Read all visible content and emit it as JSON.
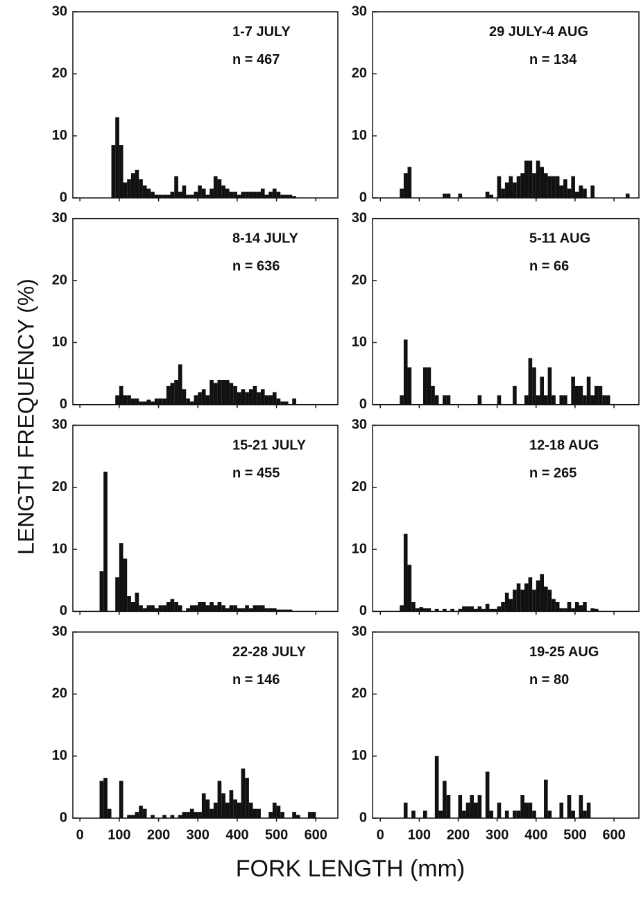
{
  "figure": {
    "y_label": "LENGTH FREQUENCY (%)",
    "x_label": "FORK LENGTH (mm)"
  },
  "chart_data": [
    {
      "type": "histogram",
      "title": "1-7 JULY",
      "subtitle": "n = 467",
      "color": "#111111",
      "bins": [
        50,
        60,
        70,
        80,
        90,
        100,
        110,
        120,
        130,
        140,
        150,
        160,
        170,
        180,
        190,
        200,
        210,
        220,
        230,
        240,
        250,
        260,
        270,
        280,
        290,
        300,
        310,
        320,
        330,
        340,
        350,
        360,
        370,
        380,
        390,
        400,
        410,
        420,
        430,
        440,
        450,
        460,
        470,
        480,
        490,
        500,
        510,
        520,
        530,
        540,
        550,
        560,
        570,
        580,
        590,
        600,
        610,
        620,
        630,
        640,
        650
      ],
      "values": [
        0,
        0,
        0,
        8.5,
        13,
        8.5,
        2.5,
        3,
        4,
        4.5,
        3,
        2,
        1.5,
        1,
        0.5,
        0.5,
        0.5,
        0.5,
        1,
        3.5,
        1,
        2,
        0.5,
        0.5,
        1,
        2,
        1.5,
        0.5,
        1.5,
        3.5,
        3,
        2,
        1.5,
        1,
        1,
        0.5,
        1,
        1,
        1,
        1,
        1,
        1.5,
        0.5,
        1,
        1.5,
        1,
        0.5,
        0.5,
        0.5,
        0.3,
        0,
        0,
        0,
        0,
        0,
        0,
        0,
        0,
        0,
        0
      ],
      "xlim": [
        -18,
        656
      ],
      "xticks": [
        0,
        100,
        200,
        300,
        400,
        500,
        600
      ],
      "ylim": [
        0,
        30
      ],
      "yticks": [
        0,
        10,
        20,
        30
      ]
    },
    {
      "type": "histogram",
      "title": "29 JULY-4 AUG",
      "subtitle": "n = 134",
      "color": "#111111",
      "bins": [
        50,
        60,
        70,
        80,
        90,
        100,
        110,
        120,
        130,
        140,
        150,
        160,
        170,
        180,
        190,
        200,
        210,
        220,
        230,
        240,
        250,
        260,
        270,
        280,
        290,
        300,
        310,
        320,
        330,
        340,
        350,
        360,
        370,
        380,
        390,
        400,
        410,
        420,
        430,
        440,
        450,
        460,
        470,
        480,
        490,
        500,
        510,
        520,
        530,
        540,
        550,
        560,
        570,
        580,
        590,
        600,
        610,
        620,
        630,
        640,
        650
      ],
      "values": [
        1.5,
        4,
        5,
        0,
        0,
        0,
        0,
        0,
        0,
        0,
        0,
        0.7,
        0.7,
        0,
        0,
        0.7,
        0,
        0,
        0,
        0,
        0,
        0,
        1,
        0.5,
        0,
        3.5,
        1.5,
        2.5,
        3.5,
        2.5,
        3.5,
        4,
        6,
        6,
        4,
        6,
        5,
        4,
        3.5,
        3.5,
        3.5,
        2,
        3,
        1.5,
        3.5,
        1,
        2,
        1.5,
        0,
        2,
        0,
        0,
        0,
        0,
        0,
        0,
        0,
        0,
        0.7,
        0
      ],
      "xlim": [
        -20,
        664
      ],
      "xticks": [
        0,
        100,
        200,
        300,
        400,
        500,
        600
      ],
      "ylim": [
        0,
        30
      ],
      "yticks": [
        0,
        10,
        20,
        30
      ]
    },
    {
      "type": "histogram",
      "title": "8-14 JULY",
      "subtitle": "n = 636",
      "color": "#111111",
      "bins": [
        50,
        60,
        70,
        80,
        90,
        100,
        110,
        120,
        130,
        140,
        150,
        160,
        170,
        180,
        190,
        200,
        210,
        220,
        230,
        240,
        250,
        260,
        270,
        280,
        290,
        300,
        310,
        320,
        330,
        340,
        350,
        360,
        370,
        380,
        390,
        400,
        410,
        420,
        430,
        440,
        450,
        460,
        470,
        480,
        490,
        500,
        510,
        520,
        530,
        540,
        550,
        560,
        570,
        580,
        590,
        600,
        610,
        620,
        630,
        640,
        650
      ],
      "values": [
        0,
        0,
        0,
        0,
        1.5,
        3,
        1.5,
        1.5,
        1,
        1,
        0.5,
        0.5,
        0.8,
        0.5,
        1,
        1,
        1,
        3,
        3.5,
        4,
        6.5,
        2.5,
        1,
        0.5,
        1.5,
        2,
        2.5,
        1.5,
        4,
        3.5,
        4,
        4,
        4,
        3.5,
        3,
        2,
        2.5,
        2,
        2.5,
        3,
        2,
        2.5,
        1.5,
        1.5,
        2,
        1,
        0.5,
        0.5,
        0,
        1,
        0,
        0,
        0,
        0,
        0,
        0,
        0,
        0,
        0,
        0
      ],
      "xlim": [
        -18,
        656
      ],
      "xticks": [
        0,
        100,
        200,
        300,
        400,
        500,
        600
      ],
      "ylim": [
        0,
        30
      ],
      "yticks": [
        0,
        10,
        20,
        30
      ]
    },
    {
      "type": "histogram",
      "title": "5-11 AUG",
      "subtitle": "n = 66",
      "color": "#111111",
      "bins": [
        50,
        60,
        70,
        80,
        90,
        100,
        110,
        120,
        130,
        140,
        150,
        160,
        170,
        180,
        190,
        200,
        210,
        220,
        230,
        240,
        250,
        260,
        270,
        280,
        290,
        300,
        310,
        320,
        330,
        340,
        350,
        360,
        370,
        380,
        390,
        400,
        410,
        420,
        430,
        440,
        450,
        460,
        470,
        480,
        490,
        500,
        510,
        520,
        530,
        540,
        550,
        560,
        570,
        580,
        590,
        600,
        610,
        620,
        630,
        640,
        650
      ],
      "values": [
        1.5,
        10.5,
        6,
        0,
        0,
        0,
        6,
        6,
        3,
        1.5,
        0,
        1.5,
        1.5,
        0,
        0,
        0,
        0,
        0,
        0,
        0,
        1.5,
        0,
        0,
        0,
        0,
        1.5,
        0,
        0,
        0,
        3,
        0,
        0,
        1.5,
        7.5,
        6,
        1.5,
        4.5,
        1.5,
        6,
        1.5,
        0,
        1.5,
        1.5,
        0,
        4.5,
        3,
        3,
        1.5,
        4.5,
        1.5,
        3,
        3,
        1.5,
        1.5,
        0,
        0,
        0,
        0,
        0,
        0
      ],
      "xlim": [
        -20,
        664
      ],
      "xticks": [
        0,
        100,
        200,
        300,
        400,
        500,
        600
      ],
      "ylim": [
        0,
        30
      ],
      "yticks": [
        0,
        10,
        20,
        30
      ]
    },
    {
      "type": "histogram",
      "title": "15-21 JULY",
      "subtitle": "n = 455",
      "color": "#111111",
      "bins": [
        50,
        60,
        70,
        80,
        90,
        100,
        110,
        120,
        130,
        140,
        150,
        160,
        170,
        180,
        190,
        200,
        210,
        220,
        230,
        240,
        250,
        260,
        270,
        280,
        290,
        300,
        310,
        320,
        330,
        340,
        350,
        360,
        370,
        380,
        390,
        400,
        410,
        420,
        430,
        440,
        450,
        460,
        470,
        480,
        490,
        500,
        510,
        520,
        530,
        540,
        550,
        560,
        570,
        580,
        590,
        600,
        610,
        620,
        630,
        640,
        650
      ],
      "values": [
        6.5,
        22.5,
        0,
        0,
        5.5,
        11,
        8.5,
        2.5,
        1.5,
        3,
        1,
        0.5,
        1,
        1,
        0.5,
        1,
        1,
        1.5,
        2,
        1.5,
        1,
        0,
        0.5,
        1,
        1,
        1.5,
        1.5,
        1,
        1.5,
        1,
        1.5,
        1,
        0.5,
        1,
        1,
        0.5,
        0.5,
        1,
        0.5,
        1,
        1,
        1,
        0.5,
        0.5,
        0.5,
        0.3,
        0.3,
        0.3,
        0.3,
        0,
        0,
        0,
        0,
        0,
        0,
        0,
        0,
        0,
        0,
        0
      ],
      "xlim": [
        -18,
        656
      ],
      "xticks": [
        0,
        100,
        200,
        300,
        400,
        500,
        600
      ],
      "ylim": [
        0,
        30
      ],
      "yticks": [
        0,
        10,
        20,
        30
      ]
    },
    {
      "type": "histogram",
      "title": "12-18 AUG",
      "subtitle": "n = 265",
      "color": "#111111",
      "bins": [
        50,
        60,
        70,
        80,
        90,
        100,
        110,
        120,
        130,
        140,
        150,
        160,
        170,
        180,
        190,
        200,
        210,
        220,
        230,
        240,
        250,
        260,
        270,
        280,
        290,
        300,
        310,
        320,
        330,
        340,
        350,
        360,
        370,
        380,
        390,
        400,
        410,
        420,
        430,
        440,
        450,
        460,
        470,
        480,
        490,
        500,
        510,
        520,
        530,
        540,
        550,
        560,
        570,
        580,
        590,
        600,
        610,
        620,
        630,
        640,
        650
      ],
      "values": [
        1,
        12.5,
        7.5,
        1.5,
        0.5,
        0.7,
        0.5,
        0.5,
        0,
        0.4,
        0,
        0.4,
        0,
        0.4,
        0,
        0.4,
        0.8,
        0.8,
        0.8,
        0.4,
        0.8,
        0.4,
        1.2,
        0.4,
        0.4,
        0.8,
        1.5,
        3,
        2,
        3.5,
        4.5,
        3.5,
        4.5,
        5.5,
        3.5,
        5,
        6,
        4,
        3.5,
        2,
        1.5,
        0.5,
        0.5,
        1.5,
        0.5,
        1.5,
        1,
        1.5,
        0,
        0.5,
        0.4,
        0,
        0,
        0,
        0,
        0,
        0,
        0,
        0,
        0
      ],
      "xlim": [
        -20,
        664
      ],
      "xticks": [
        0,
        100,
        200,
        300,
        400,
        500,
        600
      ],
      "ylim": [
        0,
        30
      ],
      "yticks": [
        0,
        10,
        20,
        30
      ]
    },
    {
      "type": "histogram",
      "title": "22-28 JULY",
      "subtitle": "n = 146",
      "color": "#111111",
      "bins": [
        50,
        60,
        70,
        80,
        90,
        100,
        110,
        120,
        130,
        140,
        150,
        160,
        170,
        180,
        190,
        200,
        210,
        220,
        230,
        240,
        250,
        260,
        270,
        280,
        290,
        300,
        310,
        320,
        330,
        340,
        350,
        360,
        370,
        380,
        390,
        400,
        410,
        420,
        430,
        440,
        450,
        460,
        470,
        480,
        490,
        500,
        510,
        520,
        530,
        540,
        550,
        560,
        570,
        580,
        590,
        600,
        610,
        620,
        630,
        640,
        650
      ],
      "values": [
        6,
        6.5,
        1.5,
        0,
        0,
        6,
        0,
        0.5,
        0.5,
        1,
        2,
        1.5,
        0,
        0.5,
        0,
        0,
        0.5,
        0,
        0.5,
        0,
        0.5,
        1,
        1,
        1.5,
        1,
        1,
        4,
        3,
        1.5,
        2.5,
        6,
        4,
        2.5,
        4.5,
        3,
        2.5,
        8,
        6.5,
        2.5,
        1.5,
        1.5,
        0,
        0,
        1,
        2.5,
        2,
        1,
        0,
        0,
        1,
        0.5,
        0,
        0,
        1,
        1,
        0,
        0,
        0,
        0,
        0
      ],
      "xlim": [
        -18,
        656
      ],
      "xticks": [
        0,
        100,
        200,
        300,
        400,
        500,
        600
      ],
      "ylim": [
        0,
        30
      ],
      "yticks": [
        0,
        10,
        20,
        30
      ]
    },
    {
      "type": "histogram",
      "title": "19-25 AUG",
      "subtitle": "n = 80",
      "color": "#111111",
      "bins": [
        50,
        60,
        70,
        80,
        90,
        100,
        110,
        120,
        130,
        140,
        150,
        160,
        170,
        180,
        190,
        200,
        210,
        220,
        230,
        240,
        250,
        260,
        270,
        280,
        290,
        300,
        310,
        320,
        330,
        340,
        350,
        360,
        370,
        380,
        390,
        400,
        410,
        420,
        430,
        440,
        450,
        460,
        470,
        480,
        490,
        500,
        510,
        520,
        530,
        540,
        550,
        560,
        570,
        580,
        590,
        600,
        610,
        620,
        630,
        640,
        650
      ],
      "values": [
        0,
        2.5,
        0,
        1.2,
        0,
        0,
        1.2,
        0,
        0,
        10,
        1.2,
        6,
        3.7,
        0,
        0,
        3.7,
        1.2,
        2.5,
        3.7,
        2.5,
        3.7,
        0,
        7.5,
        1.2,
        0,
        2.5,
        0,
        1.2,
        0,
        1.2,
        1.2,
        3.7,
        2.5,
        2.5,
        1.2,
        0,
        0,
        6.2,
        1.2,
        0,
        0,
        2.5,
        0,
        3.7,
        1.2,
        0,
        3.7,
        1.2,
        2.5,
        0,
        0,
        0,
        0,
        0,
        0,
        0,
        0,
        0,
        0,
        0
      ],
      "xlim": [
        -20,
        664
      ],
      "xticks": [
        0,
        100,
        200,
        300,
        400,
        500,
        600
      ],
      "ylim": [
        0,
        30
      ],
      "yticks": [
        0,
        10,
        20,
        30
      ]
    }
  ]
}
